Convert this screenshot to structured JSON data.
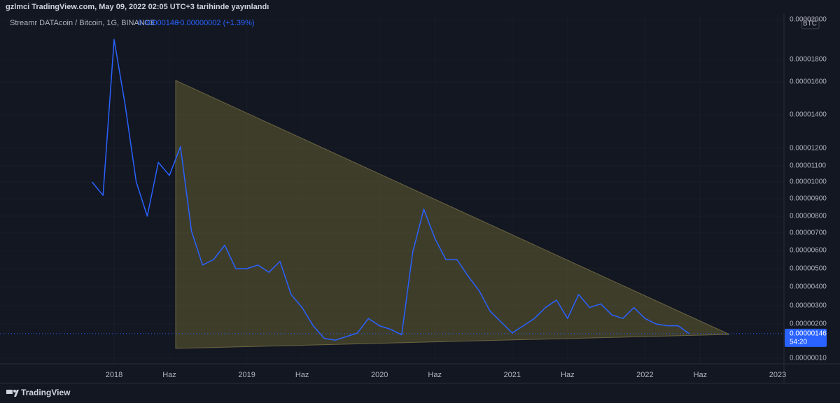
{
  "header": {
    "publisher": "gzlmci TradingView.com, May 09, 2022 02:05 UTC+3 tarihinde yayınlandı"
  },
  "footer": {
    "brand": "TradingView"
  },
  "chart_data": {
    "type": "line",
    "currency": "BTC",
    "last_price": {
      "value": 1.46e-06,
      "label": "0.00000146"
    },
    "change": "+0.00000002 (+1.39%)",
    "countdown": "54:20",
    "x": [
      "2017-11",
      "2017-12",
      "2018-01",
      "2018-02",
      "2018-03",
      "2018-04",
      "2018-05",
      "2018-06",
      "2018-07",
      "2018-08",
      "2018-09",
      "2018-10",
      "2018-11",
      "2018-12",
      "2019-01",
      "2019-02",
      "2019-03",
      "2019-04",
      "2019-05",
      "2019-06",
      "2019-07",
      "2019-08",
      "2019-09",
      "2019-10",
      "2019-11",
      "2019-12",
      "2020-01",
      "2020-02",
      "2020-03",
      "2020-04",
      "2020-05",
      "2020-06",
      "2020-07",
      "2020-08",
      "2020-09",
      "2020-10",
      "2020-11",
      "2020-12",
      "2021-01",
      "2021-02",
      "2021-03",
      "2021-04",
      "2021-05",
      "2021-06",
      "2021-07",
      "2021-08",
      "2021-09",
      "2021-10",
      "2021-11",
      "2021-12",
      "2022-01",
      "2022-02",
      "2022-03",
      "2022-04",
      "2022-05"
    ],
    "series": [
      {
        "name": "Streamr DATAcoin / Bitcoin, 1G, BINANCE",
        "color": "#2962ff",
        "values": [
          1e-05,
          9.2e-06,
          1.9e-05,
          1.46e-05,
          1e-05,
          8e-06,
          1.12e-05,
          1.04e-05,
          1.21e-05,
          7.1e-06,
          5.2e-06,
          5.5e-06,
          6.3e-06,
          5e-06,
          5e-06,
          5.2e-06,
          4.8e-06,
          5.4e-06,
          3.6e-06,
          2.9e-06,
          1.9e-06,
          1.2e-06,
          1.1e-06,
          1.3e-06,
          1.5e-06,
          2.3e-06,
          1.9e-06,
          1.7e-06,
          1.4e-06,
          5.9e-06,
          8.4e-06,
          6.7e-06,
          5.5e-06,
          5.5e-06,
          4.6e-06,
          3.8e-06,
          2.7e-06,
          2.1e-06,
          1.5e-06,
          1.9e-06,
          2.3e-06,
          2.9e-06,
          3.3e-06,
          2.3e-06,
          3.6e-06,
          2.9e-06,
          3.1e-06,
          2.5e-06,
          2.3e-06,
          2.9e-06,
          2.3e-06,
          2e-06,
          1.9e-06,
          1.9e-06,
          1.46e-06
        ]
      }
    ],
    "xlim": [
      "2017-03",
      "2023-01"
    ],
    "xticks": [
      {
        "value": "2018-01",
        "label": "2018"
      },
      {
        "value": "2018-06",
        "label": "Haz"
      },
      {
        "value": "2019-01",
        "label": "2019"
      },
      {
        "value": "2019-06",
        "label": "Haz"
      },
      {
        "value": "2020-01",
        "label": "2020"
      },
      {
        "value": "2020-06",
        "label": "Haz"
      },
      {
        "value": "2021-01",
        "label": "2021"
      },
      {
        "value": "2021-06",
        "label": "Haz"
      },
      {
        "value": "2022-01",
        "label": "2022"
      },
      {
        "value": "2022-06",
        "label": "Haz"
      },
      {
        "value": "2023-01",
        "label": "2023"
      }
    ],
    "ylim": [
      1e-07,
      2e-05
    ],
    "yticks": [
      {
        "value": 2e-05,
        "label": "0.00002000"
      },
      {
        "value": 1.8e-05,
        "label": "0.00001800"
      },
      {
        "value": 1.6e-05,
        "label": "0.00001600"
      },
      {
        "value": 1.4e-05,
        "label": "0.00001400"
      },
      {
        "value": 1.2e-05,
        "label": "0.00001200"
      },
      {
        "value": 1.1e-05,
        "label": "0.00001100"
      },
      {
        "value": 1e-05,
        "label": "0.00001000"
      },
      {
        "value": 9e-06,
        "label": "0.00000900"
      },
      {
        "value": 8e-06,
        "label": "0.00000800"
      },
      {
        "value": 7e-06,
        "label": "0.00000700"
      },
      {
        "value": 6e-06,
        "label": "0.00000600"
      },
      {
        "value": 5e-06,
        "label": "0.00000500"
      },
      {
        "value": 4e-06,
        "label": "0.00000400"
      },
      {
        "value": 3e-06,
        "label": "0.00000300"
      },
      {
        "value": 2e-06,
        "label": "0.00000200"
      },
      {
        "value": 1e-07,
        "label": "0.00000010"
      }
    ],
    "grid": true
  }
}
